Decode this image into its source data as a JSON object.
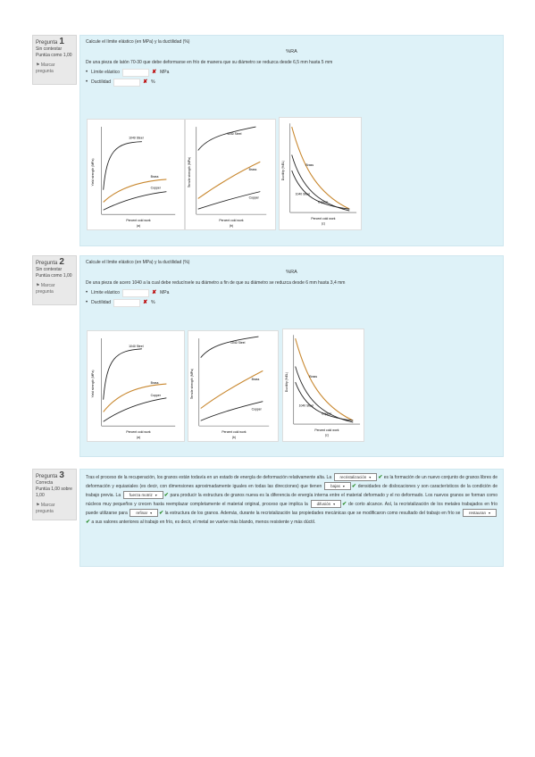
{
  "q1": {
    "info": {
      "label": "Pregunta",
      "number": "1",
      "status": "Sin contestar",
      "points": "Puntúa como 1,00",
      "flag": "Marcar pregunta"
    },
    "question_text": "Calcule el límite elástico (en MPa) y la ductilidad (%)",
    "formula": "%RA",
    "description": "De una pieza de latón 70-30 que debe deformarse en frío de manera que su diámetro se reduzca desde 6,5 mm hasta 5 mm",
    "answers": [
      {
        "label": "Límite elástico",
        "unit": "MPa"
      },
      {
        "label": "Ductilidad",
        "unit": "%"
      }
    ],
    "figures": {
      "a": {
        "series": [
          "1040 Steel",
          "Brass",
          "Copper"
        ],
        "xlabel": "Percent cold work",
        "ylabel": "Yield strength (MPa)",
        "caption": "(a)"
      },
      "b": {
        "series": [
          "1040 Steel",
          "Brass",
          "Copper"
        ],
        "xlabel": "Percent cold work",
        "ylabel": "Tensile strength (MPa)",
        "caption": "(b)"
      },
      "c": {
        "series": [
          "Brass",
          "1040 Steel",
          "Copper"
        ],
        "xlabel": "Percent cold work",
        "ylabel": "Ductility (%EL)",
        "caption": "(c)"
      }
    }
  },
  "q2": {
    "info": {
      "label": "Pregunta",
      "number": "2",
      "status": "Sin contestar",
      "points": "Puntúa como 1,00",
      "flag": "Marcar pregunta"
    },
    "question_text": "Calcule el límite elástico (en MPa) y la ductilidad (%)",
    "formula": "%RA",
    "description": "De una pieza de acero 1040 a la cual debe reducírsele su diámetro a fin de que su diámetro se reduzca desde 6 mm hasta 3,4 mm",
    "answers": [
      {
        "label": "Límite elástico",
        "unit": "MPa"
      },
      {
        "label": "Ductilidad",
        "unit": "%"
      }
    ],
    "figures": {
      "a": {
        "series": [
          "1040 Steel",
          "Brass",
          "Copper"
        ],
        "xlabel": "Percent cold work",
        "ylabel": "Yield strength (MPa)",
        "caption": "(a)"
      },
      "b": {
        "series": [
          "1040 Steel",
          "Brass",
          "Copper"
        ],
        "xlabel": "Percent cold work",
        "ylabel": "Tensile strength (MPa)",
        "caption": "(b)"
      },
      "c": {
        "series": [
          "Brass",
          "1040 Steel",
          "Copper"
        ],
        "xlabel": "Percent cold work",
        "ylabel": "Ductility (%EL)",
        "caption": "(c)"
      }
    }
  },
  "q3": {
    "info": {
      "label": "Pregunta",
      "number": "3",
      "status": "Correcta",
      "points": "Puntúa 1,00 sobre 1,00",
      "flag": "Marcar pregunta"
    },
    "text": {
      "t1": "Tras el proceso de la recuperación, los granos están todavía en un estado de energía de deformación relativamente alta. La",
      "s1": "recristalización",
      "t2": "es la formación de un nuevo conjunto de granos libres de deformación y equiaxiales (es decir, con dimensiones aproximadamente iguales en todas las direcciones) que tienen",
      "s2": "bajas",
      "t3": "densidades de dislocaciones y son característicos de la condición de trabajo previa. La",
      "s3": "fuerza motriz",
      "t4": "para producir la estructura de granos nueva es la diferencia de energía interna entre el material deformado y el no deformado. Los nuevos granos se forman como núcleos muy pequeños y crecen hasta reemplazar completamente el material original, proceso que implica la",
      "s4": "difusión",
      "t5": "de corto alcance. Así, la recristalización de los metales trabajados en frío puede utilizarse para",
      "s5": "refinar",
      "t6": "la estructura de los granos. Además, durante la recristalización las propiedades mecánicas que se modificaron como resultado del trabajo en frío se",
      "s6": "restauran",
      "t7": "a sus valores anteriores al trabajo en frío, es decir, el metal se vuelve más blando, menos resistente y más dúctil."
    }
  }
}
